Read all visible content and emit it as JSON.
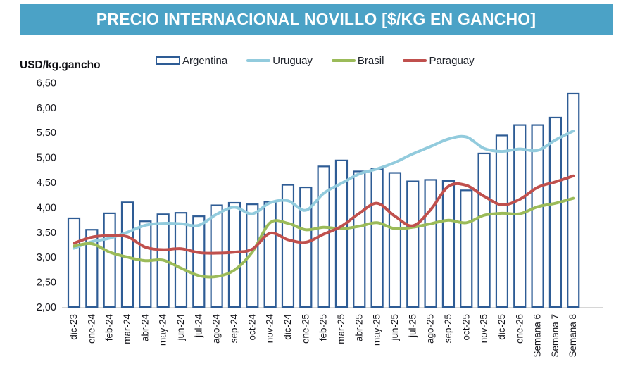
{
  "header": {
    "title": "PRECIO INTERNACIONAL NOVILLO [$/KG EN GANCHO]",
    "bg_color": "#4BA2C6",
    "text_color": "#FFFFFF"
  },
  "axis_unit_label": "USD/kg.gancho",
  "legend": [
    {
      "label": "Argentina",
      "type": "bar",
      "color": "#2E5C95"
    },
    {
      "label": "Uruguay",
      "type": "line",
      "color": "#92CBDD"
    },
    {
      "label": "Brasil",
      "type": "line",
      "color": "#9BBB59"
    },
    {
      "label": "Paraguay",
      "type": "line",
      "color": "#C0504D"
    }
  ],
  "chart_data": {
    "type": "bar",
    "subtype": "bar-line-combo",
    "title": "PRECIO INTERNACIONAL NOVILLO [$/KG EN GANCHO]",
    "ylabel": "USD/kg.gancho",
    "xlabel": "",
    "ylim": [
      2.0,
      6.5
    ],
    "ytick_step": 0.5,
    "ytick_labels": [
      "2,00",
      "2,50",
      "3,00",
      "3,50",
      "4,00",
      "4,50",
      "5,00",
      "5,50",
      "6,00",
      "6,50"
    ],
    "grid": false,
    "legend_position": "top",
    "categories": [
      "dic-23",
      "ene-24",
      "feb-24",
      "mar-24",
      "abr-24",
      "may-24",
      "jun-24",
      "jul-24",
      "ago-24",
      "sep-24",
      "oct-24",
      "nov-24",
      "dic-24",
      "ene-25",
      "feb-25",
      "mar-25",
      "abr-25",
      "may-25",
      "jun-25",
      "jul-25",
      "ago-25",
      "sep-25",
      "oct-25",
      "nov-25",
      "dic-25",
      "ene-26",
      "Semana 6",
      "Semana 7",
      "Semana 8"
    ],
    "series": [
      {
        "name": "Argentina",
        "type": "bar",
        "color": "#2E5C95",
        "fill": "#FFFFFF",
        "values": [
          3.78,
          3.55,
          3.88,
          4.1,
          3.72,
          3.86,
          3.89,
          3.82,
          4.04,
          4.09,
          4.06,
          4.11,
          4.45,
          4.4,
          4.82,
          4.94,
          4.72,
          4.77,
          4.69,
          4.52,
          4.55,
          4.53,
          4.34,
          5.08,
          5.44,
          5.65,
          5.65,
          5.8,
          6.28
        ]
      },
      {
        "name": "Uruguay",
        "type": "line",
        "color": "#92CBDD",
        "values": [
          3.18,
          3.31,
          3.38,
          3.5,
          3.64,
          3.68,
          3.67,
          3.64,
          3.86,
          4.0,
          3.87,
          4.09,
          4.13,
          3.94,
          4.28,
          4.48,
          4.67,
          4.77,
          4.9,
          5.07,
          5.22,
          5.37,
          5.41,
          5.18,
          5.12,
          5.17,
          5.14,
          5.35,
          5.53
        ]
      },
      {
        "name": "Brasil",
        "type": "line",
        "color": "#9BBB59",
        "values": [
          3.22,
          3.27,
          3.1,
          3.0,
          2.93,
          2.94,
          2.78,
          2.63,
          2.61,
          2.74,
          3.1,
          3.69,
          3.68,
          3.55,
          3.6,
          3.57,
          3.62,
          3.69,
          3.57,
          3.6,
          3.67,
          3.74,
          3.69,
          3.84,
          3.88,
          3.87,
          4.01,
          4.08,
          4.18
        ]
      },
      {
        "name": "Paraguay",
        "type": "line",
        "color": "#C0504D",
        "values": [
          3.28,
          3.4,
          3.43,
          3.41,
          3.2,
          3.15,
          3.17,
          3.09,
          3.08,
          3.1,
          3.16,
          3.48,
          3.35,
          3.3,
          3.46,
          3.62,
          3.88,
          4.08,
          3.82,
          3.63,
          3.95,
          4.42,
          4.44,
          4.22,
          4.05,
          4.16,
          4.4,
          4.51,
          4.63
        ]
      }
    ]
  }
}
